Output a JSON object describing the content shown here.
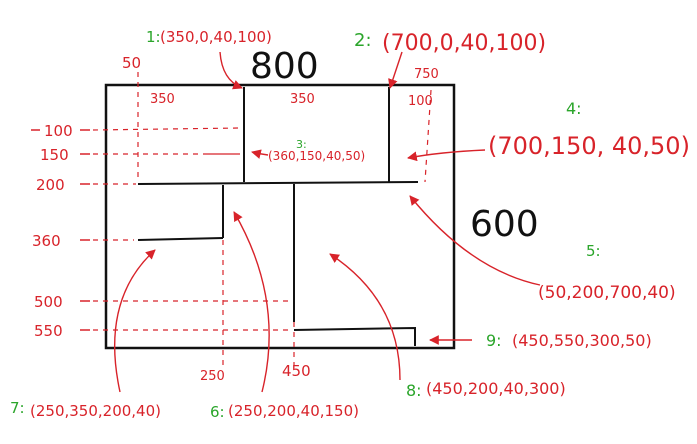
{
  "colors": {
    "ink": "#111111",
    "annotation": "#d8232a",
    "label": "#2aa52a"
  },
  "outer": {
    "width_label": "800",
    "height_label": "600"
  },
  "top_dims": {
    "a": "50",
    "b": "350",
    "c": "350",
    "d": "750",
    "e": "100"
  },
  "left_dims": {
    "y100": "100",
    "y150": "150",
    "y200": "200",
    "y360": "360",
    "y500": "500",
    "y550": "550"
  },
  "bottom_dims": {
    "x250": "250",
    "x450": "450"
  },
  "rects": [
    {
      "id": "1:",
      "coords": "(350,0,40,100)"
    },
    {
      "id": "2:",
      "coords": "(700,0,40,100)"
    },
    {
      "id": "3:",
      "coords": "(360,150,40,50)"
    },
    {
      "id": "4:",
      "coords": "(700,150, 40,50)"
    },
    {
      "id": "5:",
      "coords": "(50,200,700,40)"
    },
    {
      "id": "6:",
      "coords": "(250,200,40,150)"
    },
    {
      "id": "7:",
      "coords": "(250,350,200,40)"
    },
    {
      "id": "8:",
      "coords": "(450,200,40,300)"
    },
    {
      "id": "9:",
      "coords": "(450,550,300,50)"
    }
  ]
}
